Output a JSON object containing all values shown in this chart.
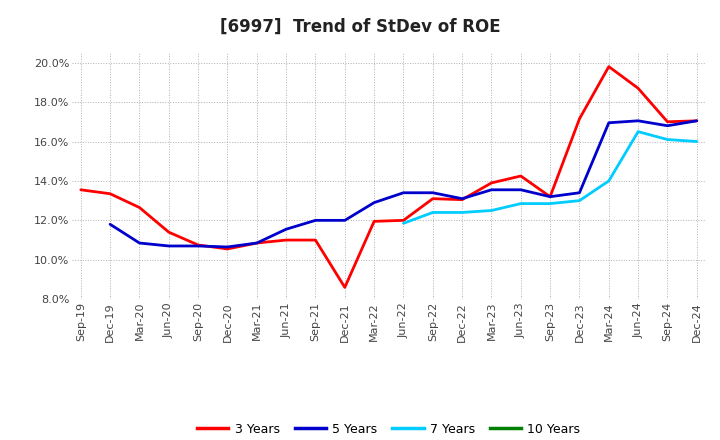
{
  "title": "[6997]  Trend of StDev of ROE",
  "ylim": [
    0.08,
    0.205
  ],
  "yticks": [
    0.08,
    0.1,
    0.12,
    0.14,
    0.16,
    0.18,
    0.2
  ],
  "background_color": "#ffffff",
  "grid_color": "#b0b0b0",
  "series": {
    "3 Years": {
      "color": "#ff0000",
      "data": [
        [
          "Sep-19",
          0.1355
        ],
        [
          "Dec-19",
          0.1335
        ],
        [
          "Mar-20",
          0.1265
        ],
        [
          "Jun-20",
          0.114
        ],
        [
          "Sep-20",
          0.1075
        ],
        [
          "Dec-20",
          0.1055
        ],
        [
          "Mar-21",
          0.1085
        ],
        [
          "Jun-21",
          0.11
        ],
        [
          "Sep-21",
          0.11
        ],
        [
          "Dec-21",
          0.086
        ],
        [
          "Mar-22",
          0.1195
        ],
        [
          "Jun-22",
          0.12
        ],
        [
          "Sep-22",
          0.131
        ],
        [
          "Dec-22",
          0.1305
        ],
        [
          "Mar-23",
          0.139
        ],
        [
          "Jun-23",
          0.1425
        ],
        [
          "Sep-23",
          0.132
        ],
        [
          "Dec-23",
          0.1715
        ],
        [
          "Mar-24",
          0.198
        ],
        [
          "Jun-24",
          0.187
        ],
        [
          "Sep-24",
          0.17
        ],
        [
          "Dec-24",
          0.1705
        ]
      ]
    },
    "5 Years": {
      "color": "#0000cc",
      "data": [
        [
          "Sep-19",
          null
        ],
        [
          "Dec-19",
          0.118
        ],
        [
          "Mar-20",
          0.1085
        ],
        [
          "Jun-20",
          0.107
        ],
        [
          "Sep-20",
          0.107
        ],
        [
          "Dec-20",
          0.1065
        ],
        [
          "Mar-21",
          0.1085
        ],
        [
          "Jun-21",
          0.1155
        ],
        [
          "Sep-21",
          0.12
        ],
        [
          "Dec-21",
          0.12
        ],
        [
          "Mar-22",
          0.129
        ],
        [
          "Jun-22",
          0.134
        ],
        [
          "Sep-22",
          0.134
        ],
        [
          "Dec-22",
          0.131
        ],
        [
          "Mar-23",
          0.1355
        ],
        [
          "Jun-23",
          0.1355
        ],
        [
          "Sep-23",
          0.132
        ],
        [
          "Dec-23",
          0.134
        ],
        [
          "Mar-24",
          0.1695
        ],
        [
          "Jun-24",
          0.1705
        ],
        [
          "Sep-24",
          0.168
        ],
        [
          "Dec-24",
          0.1705
        ]
      ]
    },
    "7 Years": {
      "color": "#00ccff",
      "data": [
        [
          "Sep-19",
          null
        ],
        [
          "Dec-19",
          null
        ],
        [
          "Mar-20",
          null
        ],
        [
          "Jun-20",
          null
        ],
        [
          "Sep-20",
          null
        ],
        [
          "Dec-20",
          null
        ],
        [
          "Mar-21",
          null
        ],
        [
          "Jun-21",
          null
        ],
        [
          "Sep-21",
          null
        ],
        [
          "Dec-21",
          null
        ],
        [
          "Mar-22",
          null
        ],
        [
          "Jun-22",
          0.1185
        ],
        [
          "Sep-22",
          0.124
        ],
        [
          "Dec-22",
          0.124
        ],
        [
          "Mar-23",
          0.125
        ],
        [
          "Jun-23",
          0.1285
        ],
        [
          "Sep-23",
          0.1285
        ],
        [
          "Dec-23",
          0.13
        ],
        [
          "Mar-24",
          0.14
        ],
        [
          "Jun-24",
          0.165
        ],
        [
          "Sep-24",
          0.161
        ],
        [
          "Dec-24",
          0.16
        ]
      ]
    },
    "10 Years": {
      "color": "#008000",
      "data": [
        [
          "Sep-19",
          null
        ],
        [
          "Dec-19",
          null
        ],
        [
          "Mar-20",
          null
        ],
        [
          "Jun-20",
          null
        ],
        [
          "Sep-20",
          null
        ],
        [
          "Dec-20",
          null
        ],
        [
          "Mar-21",
          null
        ],
        [
          "Jun-21",
          null
        ],
        [
          "Sep-21",
          null
        ],
        [
          "Dec-21",
          null
        ],
        [
          "Mar-22",
          null
        ],
        [
          "Jun-22",
          null
        ],
        [
          "Sep-22",
          null
        ],
        [
          "Dec-22",
          null
        ],
        [
          "Mar-23",
          null
        ],
        [
          "Jun-23",
          null
        ],
        [
          "Sep-23",
          null
        ],
        [
          "Dec-23",
          null
        ],
        [
          "Mar-24",
          null
        ],
        [
          "Jun-24",
          null
        ],
        [
          "Sep-24",
          null
        ],
        [
          "Dec-24",
          null
        ]
      ]
    }
  },
  "xtick_labels": [
    "Sep-19",
    "Dec-19",
    "Mar-20",
    "Jun-20",
    "Sep-20",
    "Dec-20",
    "Mar-21",
    "Jun-21",
    "Sep-21",
    "Dec-21",
    "Mar-22",
    "Jun-22",
    "Sep-22",
    "Dec-22",
    "Mar-23",
    "Jun-23",
    "Sep-23",
    "Dec-23",
    "Mar-24",
    "Jun-24",
    "Sep-24",
    "Dec-24"
  ],
  "legend_entries": [
    "3 Years",
    "5 Years",
    "7 Years",
    "10 Years"
  ],
  "legend_colors": [
    "#ff0000",
    "#0000cc",
    "#00ccff",
    "#008000"
  ],
  "title_fontsize": 12,
  "tick_fontsize": 8,
  "legend_fontsize": 9,
  "linewidth": 2.0
}
